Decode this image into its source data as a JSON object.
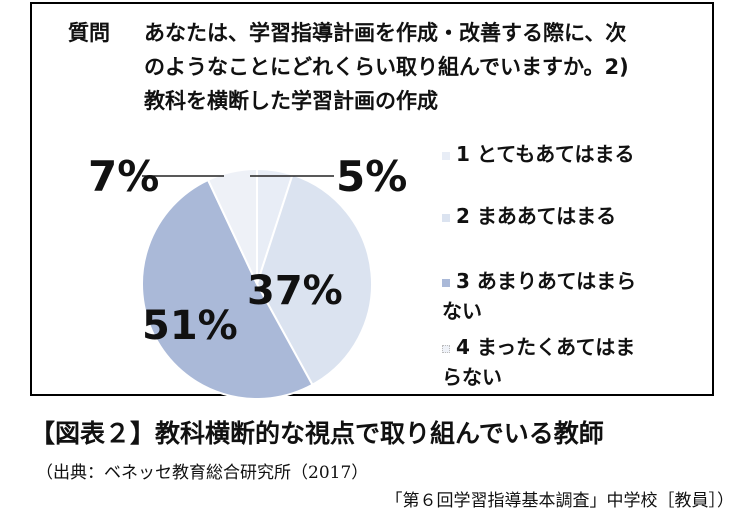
{
  "question": {
    "label": "質問",
    "line1": "あなたは、学習指導計画を作成・改善する際に、次",
    "line2": "のようなことにどれくらい取り組んでいますか。2)",
    "line3": "教科を横断した学習計画の作成"
  },
  "chart_data": {
    "type": "pie",
    "title": "",
    "slices": [
      {
        "label": "1 とてもあてはまる",
        "value": 5,
        "color": "#e8edf6"
      },
      {
        "label": "2 まああてはまる",
        "value": 37,
        "color": "#dbe3f0"
      },
      {
        "label": "3 あまりあてはまら ない",
        "value": 51,
        "color": "#aab9d8"
      },
      {
        "label": "4 まったくあてはま らない",
        "value": 7,
        "color": "#eef1f7"
      }
    ],
    "data_labels": [
      "5%",
      "37%",
      "51%",
      "7%"
    ],
    "legend_placement": "right"
  },
  "legend": {
    "item1": "1 とてもあてはまる",
    "item2": "2 まああてはまる",
    "item3a": "3 あまりあてはまら",
    "item3b": "ない",
    "item4a": "4 まったくあてはま",
    "item4b": "らない"
  },
  "caption": "【図表２】教科横断的な視点で取り組んでいる教師",
  "source_line1": "（出典：ベネッセ教育総合研究所（2017）",
  "source_line2": "「第６回学習指導基本調査」中学校［教員］）"
}
